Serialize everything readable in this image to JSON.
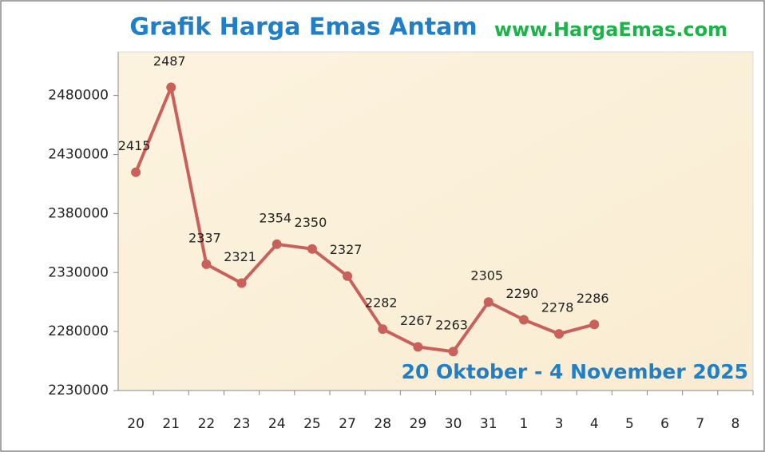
{
  "chart_data": {
    "type": "line",
    "title": "Grafik Harga Emas Antam",
    "subtitle": "www.HargaEmas.com",
    "annotation": "20 Oktober - 4 November 2025",
    "categories": [
      "20",
      "21",
      "22",
      "23",
      "24",
      "25",
      "27",
      "28",
      "29",
      "30",
      "31",
      "1",
      "3",
      "4",
      "5",
      "6",
      "7",
      "8"
    ],
    "series": [
      {
        "name": "Harga Emas Antam",
        "color": "#c9605a",
        "values": [
          2415000,
          2487000,
          2337000,
          2321000,
          2354000,
          2350000,
          2327000,
          2282000,
          2267000,
          2263000,
          2305000,
          2290000,
          2278000,
          2286000,
          null,
          null,
          null,
          null
        ],
        "value_labels": [
          "2415",
          "2487",
          "2337",
          "2321",
          "2354",
          "2350",
          "2327",
          "2282",
          "2267",
          "2263",
          "2305",
          "2290",
          "2278",
          "2286",
          null,
          null,
          null,
          null
        ]
      }
    ],
    "ylim": [
      2230000,
      2517000
    ],
    "yticks": [
      2230000,
      2280000,
      2330000,
      2380000,
      2430000,
      2480000
    ],
    "grid": false
  }
}
